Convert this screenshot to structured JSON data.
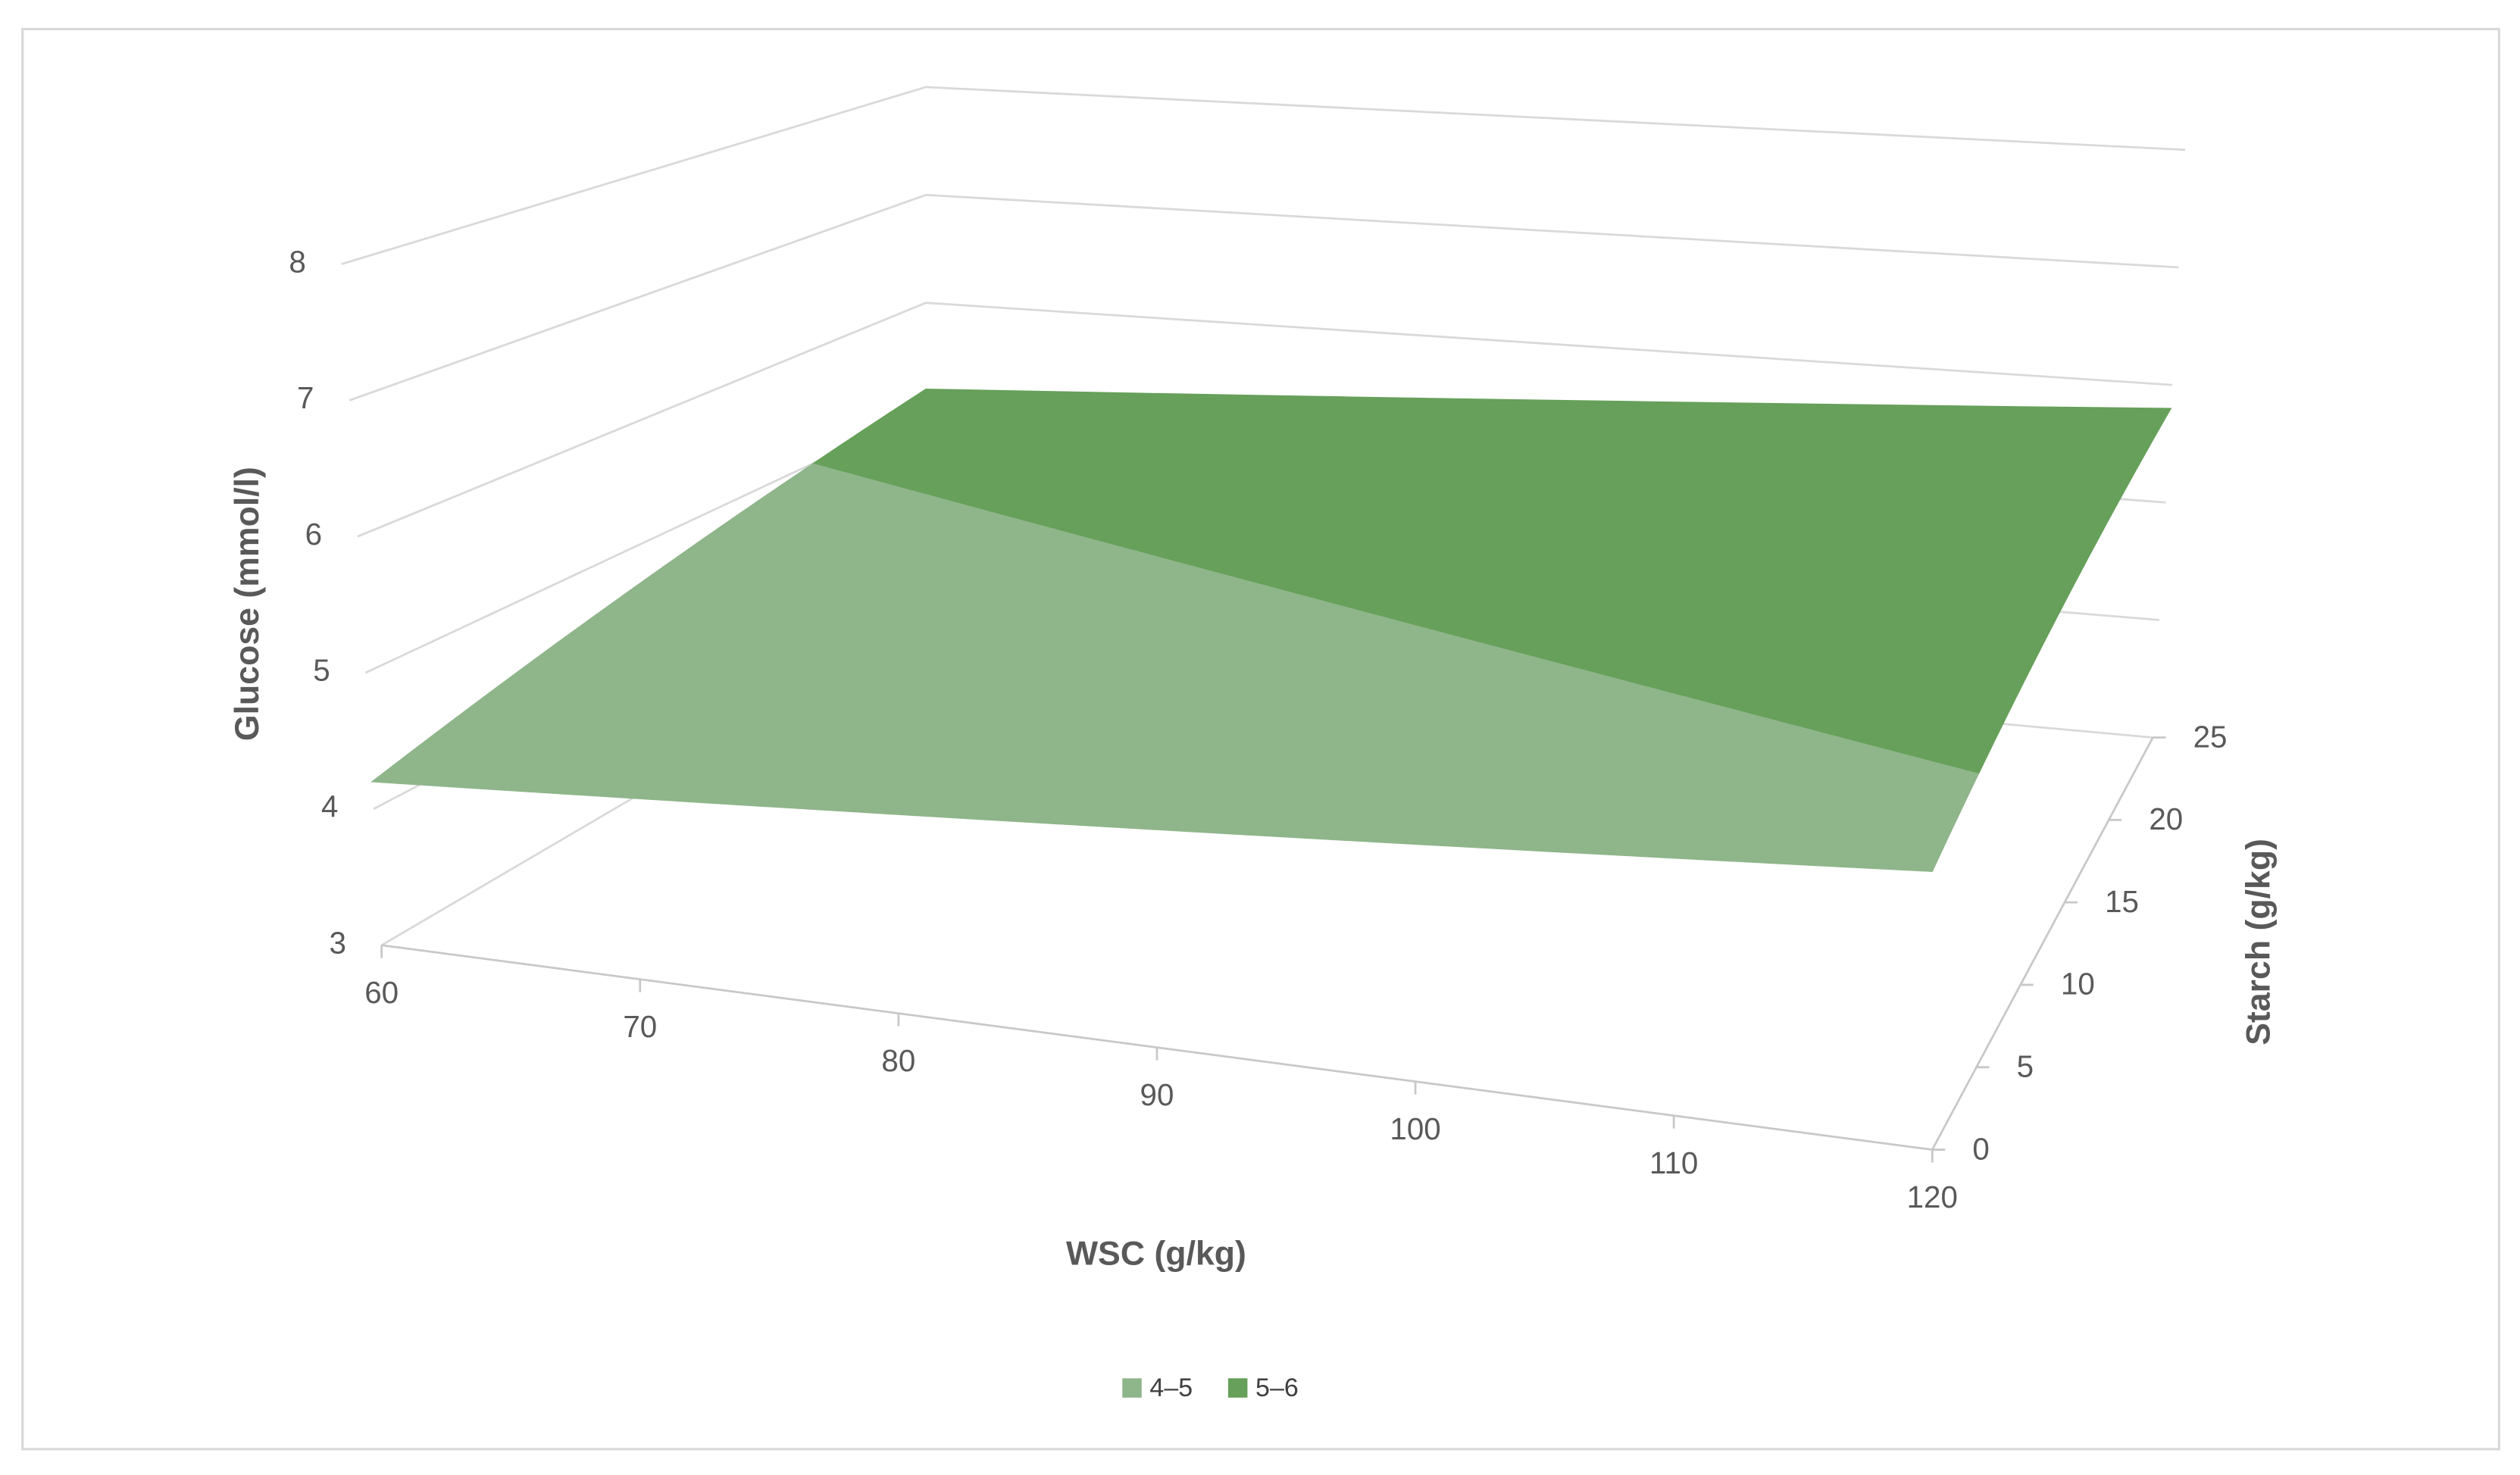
{
  "chart_data": {
    "type": "surface",
    "x_label": "WSC (g/kg)",
    "y_label": "Starch (g/kg)",
    "z_label": "Glucose (mmol/l)",
    "x": [
      60,
      120
    ],
    "y": [
      0,
      25
    ],
    "z": [
      [
        4.2,
        4.8
      ],
      [
        5.2,
        5.8
      ]
    ],
    "xlim": [
      60,
      120
    ],
    "xticks": [
      60,
      70,
      80,
      90,
      100,
      110,
      120
    ],
    "ylim": [
      0,
      25
    ],
    "yticks": [
      0,
      5,
      10,
      15,
      20,
      25
    ],
    "zlim": [
      3,
      8
    ],
    "zticks": [
      3,
      4,
      5,
      6,
      7,
      8
    ],
    "bands": [
      {
        "name": "4–5",
        "range": [
          4,
          5
        ],
        "color": "#8fb58a"
      },
      {
        "name": "5–6",
        "range": [
          5,
          6
        ],
        "color": "#66a05a"
      }
    ],
    "grid": true,
    "legend": "bottom"
  }
}
